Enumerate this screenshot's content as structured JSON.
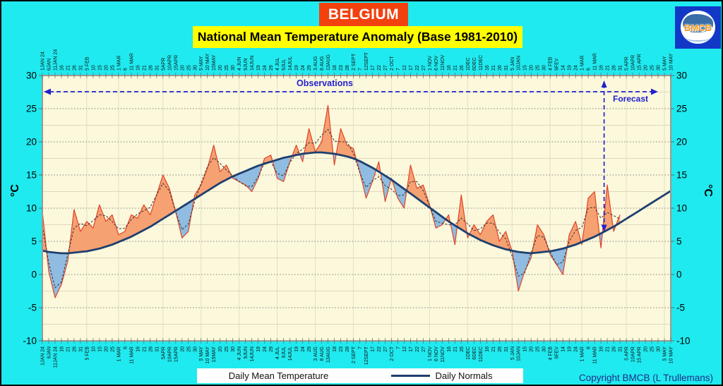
{
  "window": {
    "bg": "#1FEAEF",
    "border": "#000000"
  },
  "header": {
    "country_banner": {
      "label": "BELGIUM",
      "bg": "#F2410E",
      "fg": "#FFFFFF"
    },
    "title_banner": {
      "label": "National Mean Temperature Anomaly (Base 1981-2010)",
      "bg": "#FFFF00",
      "fg": "#000000"
    },
    "logo": {
      "label": "BMCB",
      "bg": "#1238C8",
      "fg": "#F59A1E"
    }
  },
  "legend": {
    "entries": [
      {
        "label": "Daily Mean Temperature",
        "sample": "none"
      },
      {
        "label": "Daily Normals",
        "sample": "line"
      }
    ]
  },
  "footer": {
    "copyright": "Copyright BMCB (L Trullemans)"
  },
  "chart_data": {
    "type": "area",
    "title": "National Mean Temperature Anomaly (Base 1981-2010)",
    "y_unit": "°C",
    "ylim": [
      -10,
      30
    ],
    "y_ticks": [
      30,
      25,
      20,
      15,
      10,
      5,
      0,
      -5,
      -10
    ],
    "grid": "dotted-major-5deg, faint-minor-2.5deg",
    "x_sampling_days": 5,
    "x_labels": [
      "1JAN 24",
      "6JAN",
      "11JAN 24",
      "16",
      "21",
      "26",
      "31",
      "5 FEB",
      "10",
      "15",
      "20",
      "25",
      "1 MAR",
      "6",
      "11 MAR",
      "16",
      "21",
      "26",
      "31",
      "5APR",
      "10APR",
      "15APR",
      "20",
      "25",
      "30",
      "5 MAY",
      "10 MAY",
      "15MAY",
      "20",
      "25",
      "30",
      "4 JUN",
      "9JUN",
      "14JUN",
      "19",
      "24",
      "29",
      "4 JUL",
      "9JUL",
      "14JUL",
      "19",
      "24",
      "29",
      "3 AUG",
      "8 AUG",
      "13AUG",
      "18",
      "23",
      "28",
      "2 SEPT",
      "7",
      "12SEPT",
      "17",
      "22",
      "27",
      "2 OCT",
      "7",
      "12",
      "17",
      "22",
      "27",
      "1 NOV",
      "6 NOV",
      "11NOV",
      "16",
      "21",
      "26",
      "1DEC",
      "6DEC",
      "11DEC",
      "16",
      "21",
      "26",
      "31",
      "5 JAN",
      "10JAN",
      "15",
      "20",
      "25",
      "30",
      "4 FEB",
      "9FEV",
      "14",
      "19",
      "24",
      "1 MAR",
      "6",
      "11 MAR",
      "16",
      "21",
      "26",
      "31",
      "5 APR",
      "10APR",
      "15 APR",
      "20",
      "25",
      "30",
      "5 MAY",
      "10 MAY"
    ],
    "month_start_indices": [
      0,
      7,
      12,
      19,
      25,
      31,
      37,
      43,
      49,
      55,
      61,
      67,
      74,
      80,
      85,
      92,
      98
    ],
    "series": [
      {
        "name": "Daily Mean Temperature",
        "color": "#E24427",
        "values": [
          9.5,
          0.5,
          -3.5,
          -1.5,
          2,
          9.8,
          6.5,
          8,
          7,
          10.5,
          8,
          9,
          6,
          6.5,
          9,
          8.5,
          10.5,
          9,
          12,
          15,
          13,
          9.5,
          5.5,
          6.5,
          12,
          13.5,
          16,
          19.5,
          15.5,
          16.5,
          14.5,
          14,
          13.5,
          12.5,
          14.5,
          17.5,
          18,
          14.5,
          14,
          17,
          19.5,
          17,
          22,
          18.5,
          20,
          25.5,
          16.5,
          22,
          19.5,
          19,
          15.5,
          11.5,
          14,
          17,
          11,
          14.5,
          11.5,
          10,
          16.5,
          13,
          13.5,
          10.5,
          7,
          7.5,
          9,
          4.5,
          12,
          5.5,
          7.5,
          6,
          8,
          9,
          5,
          6.5,
          3.5,
          -2.5,
          0.5,
          2.5,
          7.5,
          6,
          3,
          1.5,
          0,
          6,
          8,
          4.5,
          11.5,
          12.5,
          4,
          13.5,
          6.5,
          9,
          null,
          null,
          null,
          null,
          null,
          null,
          null,
          null
        ]
      },
      {
        "name": "Daily Normals",
        "color": "#1F3F6E",
        "values": [
          3.6,
          3.4,
          3.3,
          3.2,
          3.2,
          3.3,
          3.4,
          3.5,
          3.7,
          3.9,
          4.2,
          4.5,
          4.9,
          5.3,
          5.7,
          6.2,
          6.7,
          7.2,
          7.8,
          8.4,
          9,
          9.6,
          10.2,
          10.8,
          11.4,
          12,
          12.6,
          13.2,
          13.8,
          14.3,
          14.8,
          15.2,
          15.6,
          16,
          16.4,
          16.7,
          17,
          17.3,
          17.6,
          17.8,
          18,
          18.2,
          18.3,
          18.4,
          18.4,
          18.3,
          18.2,
          18,
          17.8,
          17.5,
          17.1,
          16.6,
          16.1,
          15.5,
          14.9,
          14.3,
          13.6,
          12.9,
          12.2,
          11.5,
          10.8,
          10.1,
          9.4,
          8.7,
          8,
          7.4,
          6.8,
          6.2,
          5.7,
          5.2,
          4.8,
          4.4,
          4.1,
          3.8,
          3.6,
          3.4,
          3.3,
          3.2,
          3.3,
          3.4,
          3.5,
          3.7,
          3.9,
          4.2,
          4.5,
          4.9,
          5.3,
          5.7,
          6.2,
          6.7,
          7.2,
          7.8,
          8.4,
          9,
          9.6,
          10.2,
          10.8,
          11.4,
          12,
          12.6
        ]
      }
    ],
    "fills": {
      "above_normal": "#F5A172",
      "below_normal": "#8FBCE0"
    },
    "smoothed_overlay": {
      "style": "black-dashed",
      "color": "#333333"
    },
    "annotations": {
      "observations_label": "Observations",
      "forecast_label": "Forecast",
      "color": "#2121CE",
      "forecast_boundary_index": 88.5
    }
  }
}
